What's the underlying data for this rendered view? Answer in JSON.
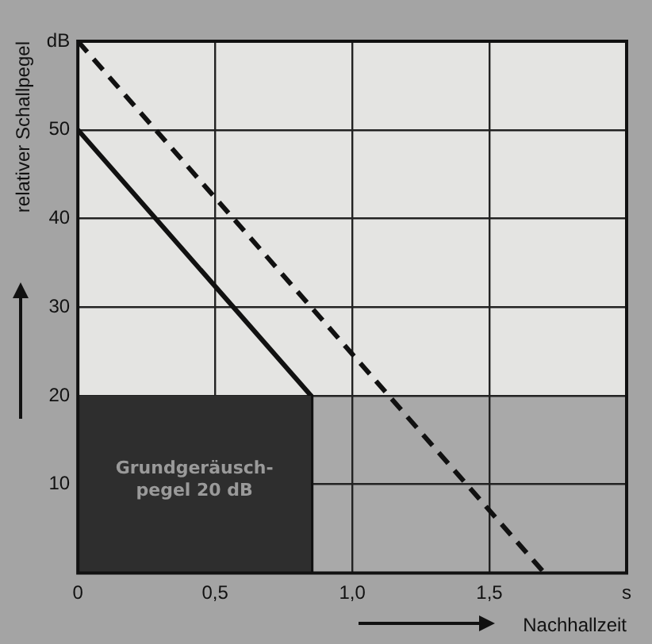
{
  "chart_data": {
    "type": "line",
    "xlabel": "Nachhallzeit",
    "ylabel": "relativer Schallpegel",
    "xlim": [
      0,
      2
    ],
    "ylim": [
      0,
      60
    ],
    "xticks": [
      0,
      {
        "value": 0.5,
        "label": "0,5"
      },
      {
        "value": 1,
        "label": "1,0"
      },
      {
        "value": 1.5,
        "label": "1,5"
      },
      {
        "value": 2,
        "label": "s"
      }
    ],
    "yticks": [
      {
        "value": 0,
        "label": null
      },
      10,
      20,
      30,
      40,
      50,
      {
        "value": 60,
        "label": "dB"
      }
    ],
    "grid": true,
    "legend": false,
    "marker": "none",
    "bands": [
      {
        "axis": "y",
        "from": 0,
        "to": 20,
        "color": "#a9a9a9"
      }
    ],
    "series": [
      {
        "type": "area",
        "color": "#2e2e2e",
        "x": [
          0,
          0.85
        ],
        "values": [
          20,
          20
        ]
      },
      {
        "type": "line",
        "color": "#111111",
        "line_style": "solid",
        "x": [
          0,
          0.85,
          0.85
        ],
        "values": [
          50,
          20,
          0
        ]
      },
      {
        "type": "line",
        "color": "#111111",
        "line_style": "dashed",
        "x": [
          0,
          1.7
        ],
        "values": [
          60,
          0
        ]
      }
    ],
    "annotations": [
      "Grundgeräusch-pegel 20 dB"
    ]
  }
}
